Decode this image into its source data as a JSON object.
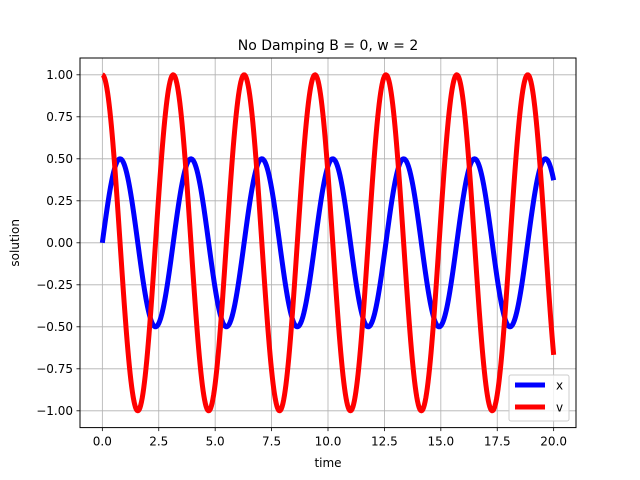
{
  "chart_data": {
    "type": "line",
    "title": "No Damping B = 0, w = 2",
    "xlabel": "time",
    "ylabel": "solution",
    "xlim": [
      -0.99,
      20.99
    ],
    "ylim": [
      -1.1,
      1.1
    ],
    "x_ticks": [
      0.0,
      2.5,
      5.0,
      7.5,
      10.0,
      12.5,
      15.0,
      17.5,
      20.0
    ],
    "x_tick_labels": [
      "0.0",
      "2.5",
      "5.0",
      "7.5",
      "10.0",
      "12.5",
      "15.0",
      "17.5",
      "20.0"
    ],
    "y_ticks": [
      1.0,
      0.75,
      0.5,
      0.25,
      0.0,
      -0.25,
      -0.5,
      -0.75,
      -1.0
    ],
    "y_tick_labels": [
      "1.00",
      "0.75",
      "0.50",
      "0.25",
      "0.00",
      "−0.25",
      "−0.50",
      "−0.75",
      "−1.00"
    ],
    "grid": true,
    "legend_position": "lower-right",
    "x_range": [
      0,
      20
    ],
    "series": [
      {
        "name": "x",
        "color": "#0000ff",
        "function": "0.5*sin(2*t)",
        "amplitude": 0.5,
        "omega": 2,
        "kind": "sin"
      },
      {
        "name": "v",
        "color": "#ff0000",
        "function": "cos(2*t)",
        "amplitude": 1.0,
        "omega": 2,
        "kind": "cos"
      }
    ]
  }
}
